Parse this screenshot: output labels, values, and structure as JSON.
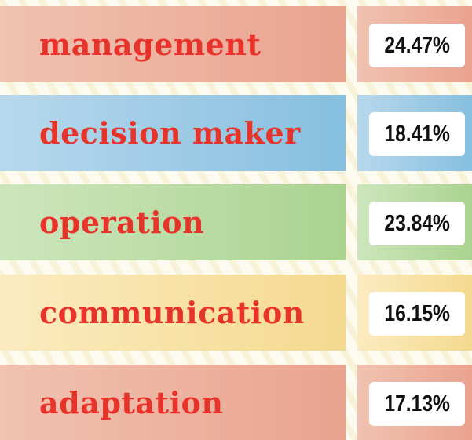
{
  "rows": [
    {
      "label": "management",
      "value": "24.47%"
    },
    {
      "label": "decision maker",
      "value": "18.41%"
    },
    {
      "label": "operation",
      "value": "23.84%"
    },
    {
      "label": "communication",
      "value": "16.15%"
    },
    {
      "label": "adaptation",
      "value": "17.13%"
    }
  ]
}
